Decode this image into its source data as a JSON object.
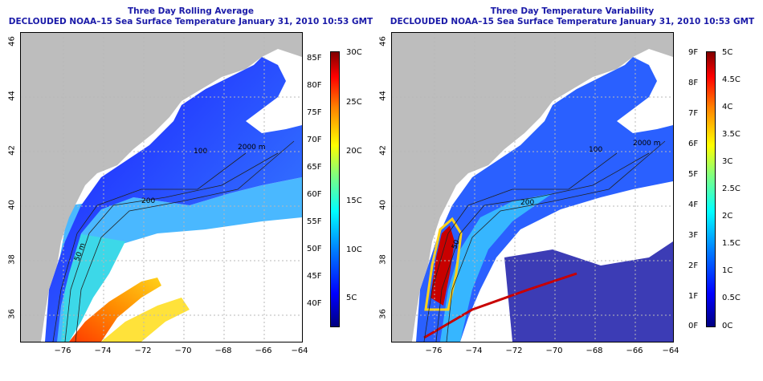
{
  "left": {
    "title_line1": "Three Day Rolling Average",
    "title_line2": "DECLOUDED NOAA–15 Sea Surface Temperature January 31, 2010 10:53 GMT",
    "colorbar_f": [
      "85F",
      "80F",
      "75F",
      "70F",
      "65F",
      "60F",
      "55F",
      "50F",
      "45F",
      "40F"
    ],
    "colorbar_c": [
      "30C",
      "25C",
      "20C",
      "15C",
      "10C",
      "5C"
    ],
    "contour_labels": [
      "2000 m",
      "100",
      "200",
      "200",
      "50 m"
    ]
  },
  "right": {
    "title_line1": "Three Day Temperature Variability",
    "title_line2": "DECLOUDED NOAA–15 Sea Surface Temperature January 31, 2010 10:53 GMT",
    "colorbar_f": [
      "9F",
      "8F",
      "7F",
      "6F",
      "5F",
      "4F",
      "3F",
      "2F",
      "1F",
      "0F"
    ],
    "colorbar_c": [
      "5C",
      "4.5C",
      "4C",
      "3.5C",
      "3C",
      "2.5C",
      "2C",
      "1.5C",
      "1C",
      "0.5C",
      "0C"
    ],
    "contour_labels": [
      "2000 m",
      "100",
      "200",
      "50"
    ]
  },
  "axes": {
    "y_ticks": [
      "36",
      "38",
      "40",
      "42",
      "44",
      "46"
    ],
    "x_ticks": [
      "−76",
      "−74",
      "−72",
      "−70",
      "−68",
      "−66",
      "−64"
    ]
  },
  "colors": {
    "land": "#bdbdbd",
    "title": "#1a1aa8",
    "grid": "#b8b8b8",
    "sst_scale": [
      "#000080",
      "#0000ff",
      "#0080ff",
      "#00ffff",
      "#80ff80",
      "#ffff00",
      "#ff8000",
      "#ff0000",
      "#800000"
    ]
  }
}
